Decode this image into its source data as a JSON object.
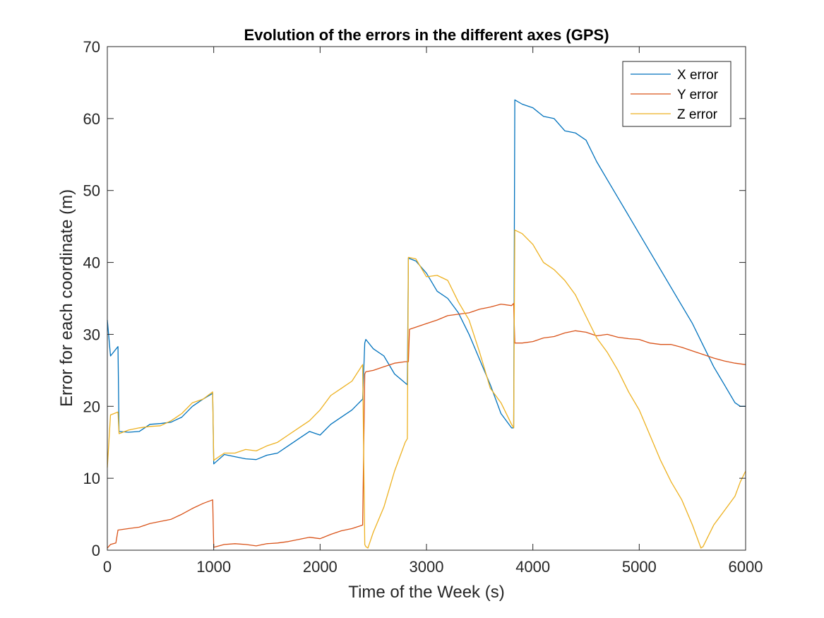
{
  "chart_data": {
    "type": "line",
    "title": "Evolution of the errors in the different axes (GPS)",
    "xlabel": "Time of the Week (s)",
    "ylabel": "Error for each coordinate (m)",
    "xlim": [
      0,
      6000
    ],
    "ylim": [
      0,
      70
    ],
    "xticks": [
      "0",
      "1000",
      "2000",
      "3000",
      "4000",
      "5000",
      "6000"
    ],
    "yticks": [
      "0",
      "10",
      "20",
      "30",
      "40",
      "50",
      "60",
      "70"
    ],
    "grid": false,
    "legend_position": "top-right",
    "series": [
      {
        "name": "X error",
        "color": "#0072bd",
        "x": [
          0,
          30,
          100,
          110,
          200,
          300,
          400,
          500,
          600,
          700,
          800,
          900,
          990,
          1000,
          1100,
          1200,
          1300,
          1400,
          1500,
          1600,
          1700,
          1800,
          1900,
          2000,
          2100,
          2200,
          2300,
          2400,
          2420,
          2430,
          2500,
          2600,
          2700,
          2820,
          2830,
          2900,
          3000,
          3100,
          3200,
          3300,
          3400,
          3500,
          3600,
          3700,
          3800,
          3820,
          3830,
          3900,
          4000,
          4100,
          4200,
          4300,
          4400,
          4500,
          4600,
          4700,
          4800,
          4900,
          5000,
          5100,
          5200,
          5300,
          5400,
          5500,
          5600,
          5700,
          5800,
          5900,
          5950,
          6000
        ],
        "y": [
          32.0,
          27.0,
          28.3,
          16.5,
          16.4,
          16.5,
          17.5,
          17.6,
          17.8,
          18.5,
          20.0,
          21.0,
          21.8,
          12.0,
          13.3,
          13.0,
          12.7,
          12.6,
          13.2,
          13.5,
          14.5,
          15.5,
          16.5,
          16.0,
          17.5,
          18.5,
          19.5,
          21.0,
          28.8,
          29.3,
          28.0,
          27.0,
          24.5,
          23.0,
          40.6,
          40.2,
          38.5,
          36.0,
          35.0,
          33.0,
          30.0,
          26.5,
          23.0,
          19.0,
          17.0,
          17.0,
          62.6,
          62.0,
          61.5,
          60.3,
          60.0,
          58.3,
          58.0,
          57.0,
          54.0,
          51.5,
          49.0,
          46.5,
          44.0,
          41.5,
          39.0,
          36.5,
          34.0,
          31.5,
          28.5,
          25.5,
          23.0,
          20.5,
          20.0,
          20.0
        ]
      },
      {
        "name": "Y error",
        "color": "#d95319",
        "x": [
          0,
          30,
          80,
          100,
          200,
          300,
          400,
          500,
          600,
          700,
          800,
          900,
          990,
          1000,
          1100,
          1200,
          1300,
          1400,
          1500,
          1600,
          1700,
          1800,
          1900,
          2000,
          2100,
          2200,
          2300,
          2400,
          2420,
          2430,
          2500,
          2600,
          2700,
          2800,
          2830,
          2840,
          2900,
          3000,
          3100,
          3200,
          3300,
          3400,
          3500,
          3600,
          3700,
          3800,
          3820,
          3830,
          3900,
          4000,
          4100,
          4200,
          4300,
          4400,
          4500,
          4600,
          4700,
          4800,
          4900,
          5000,
          5100,
          5200,
          5300,
          5400,
          5500,
          5600,
          5700,
          5800,
          5900,
          6000
        ],
        "y": [
          0.3,
          0.8,
          1.0,
          2.8,
          3.0,
          3.2,
          3.7,
          4.0,
          4.3,
          5.0,
          5.8,
          6.5,
          7.0,
          0.4,
          0.8,
          0.9,
          0.8,
          0.6,
          0.9,
          1.0,
          1.2,
          1.5,
          1.8,
          1.6,
          2.2,
          2.7,
          3.0,
          3.5,
          24.5,
          24.8,
          25.0,
          25.5,
          26.0,
          26.2,
          26.2,
          30.7,
          31.0,
          31.5,
          32.0,
          32.6,
          32.8,
          33.0,
          33.5,
          33.8,
          34.2,
          34.0,
          34.3,
          28.8,
          28.8,
          29.0,
          29.5,
          29.7,
          30.2,
          30.5,
          30.3,
          29.8,
          30.0,
          29.6,
          29.4,
          29.3,
          28.8,
          28.6,
          28.6,
          28.2,
          27.7,
          27.2,
          26.7,
          26.3,
          26.0,
          25.8
        ]
      },
      {
        "name": "Z error",
        "color": "#edb120",
        "x": [
          0,
          30,
          100,
          110,
          200,
          300,
          400,
          500,
          600,
          700,
          800,
          900,
          990,
          1000,
          1100,
          1200,
          1300,
          1400,
          1500,
          1600,
          1700,
          1800,
          1900,
          2000,
          2100,
          2200,
          2300,
          2400,
          2420,
          2430,
          2450,
          2500,
          2600,
          2700,
          2800,
          2820,
          2830,
          2900,
          3000,
          3100,
          3200,
          3300,
          3400,
          3500,
          3600,
          3700,
          3800,
          3820,
          3830,
          3900,
          4000,
          4100,
          4200,
          4300,
          4400,
          4500,
          4600,
          4700,
          4800,
          4900,
          5000,
          5100,
          5200,
          5300,
          5400,
          5500,
          5580,
          5600,
          5700,
          5800,
          5900,
          5950,
          6000
        ],
        "y": [
          11.5,
          18.8,
          19.2,
          16.2,
          16.7,
          17.0,
          17.2,
          17.3,
          18.0,
          19.0,
          20.5,
          21.0,
          22.0,
          12.5,
          13.5,
          13.5,
          14.0,
          13.8,
          14.5,
          15.0,
          16.0,
          17.0,
          18.0,
          19.5,
          21.5,
          22.5,
          23.5,
          25.8,
          0.8,
          0.5,
          0.3,
          2.5,
          6.0,
          11.0,
          15.0,
          15.5,
          40.7,
          40.5,
          38.0,
          38.2,
          37.5,
          34.5,
          32.0,
          27.5,
          22.5,
          20.5,
          17.5,
          17.0,
          44.5,
          44.0,
          42.5,
          40.0,
          39.0,
          37.5,
          35.5,
          32.5,
          29.5,
          27.5,
          25.0,
          22.0,
          19.5,
          16.0,
          12.5,
          9.5,
          7.0,
          3.5,
          0.3,
          0.5,
          3.5,
          5.5,
          7.5,
          9.5,
          11.0
        ]
      }
    ]
  }
}
